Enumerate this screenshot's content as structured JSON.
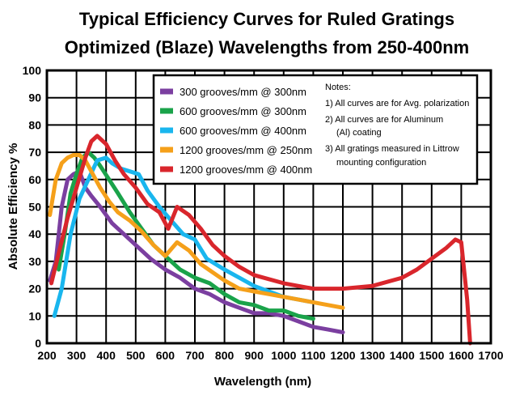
{
  "chart_data": {
    "type": "line",
    "title": "Typical Efficiency Curves  for Ruled Gratings",
    "subtitle": "Optimized (Blaze) Wavelengths from 250-400nm",
    "xlabel": "Wavelength (nm)",
    "ylabel": "Absolute Efficiency %",
    "xlim": [
      200,
      1700
    ],
    "ylim": [
      0,
      100
    ],
    "xticks": [
      200,
      300,
      400,
      500,
      600,
      700,
      800,
      900,
      1000,
      1100,
      1200,
      1300,
      1400,
      1500,
      1600,
      1700
    ],
    "yticks": [
      0,
      10,
      20,
      30,
      40,
      50,
      60,
      70,
      80,
      90,
      100
    ],
    "grid": true,
    "legend_position": "top-right",
    "series": [
      {
        "name": "300 grooves/mm  @ 300nm",
        "color": "#7b3fa0",
        "x": [
          210,
          230,
          250,
          270,
          290,
          310,
          330,
          350,
          380,
          420,
          460,
          500,
          550,
          600,
          650,
          700,
          750,
          800,
          850,
          900,
          950,
          1000,
          1050,
          1100,
          1150,
          1200
        ],
        "y": [
          23,
          30,
          50,
          60,
          62,
          63,
          57,
          54,
          50,
          44,
          40,
          36,
          31,
          27,
          24,
          20,
          18,
          15,
          13,
          11,
          11,
          10,
          8,
          6,
          5,
          4
        ]
      },
      {
        "name": "600 grooves/mm  @ 300nm",
        "color": "#1aa34a",
        "x": [
          240,
          260,
          280,
          300,
          320,
          340,
          360,
          380,
          410,
          440,
          480,
          520,
          560,
          600,
          650,
          700,
          750,
          800,
          850,
          900,
          950,
          1000,
          1050,
          1100
        ],
        "y": [
          27,
          40,
          55,
          62,
          68,
          70,
          68,
          65,
          60,
          55,
          48,
          42,
          36,
          32,
          27,
          24,
          22,
          18,
          15,
          14,
          12,
          12,
          10,
          9
        ]
      },
      {
        "name": "600 grooves/mm  @ 400nm",
        "color": "#19b6ee",
        "x": [
          225,
          250,
          280,
          310,
          340,
          370,
          400,
          420,
          450,
          480,
          510,
          540,
          580,
          620,
          660,
          700,
          740,
          800,
          850,
          900,
          950,
          1000,
          1050,
          1100
        ],
        "y": [
          10,
          20,
          40,
          53,
          60,
          67,
          68,
          66,
          64,
          63,
          62,
          56,
          50,
          45,
          40,
          38,
          31,
          27,
          24,
          21,
          19,
          17,
          16,
          15
        ]
      },
      {
        "name": "1200 grooves/mm  @ 250nm",
        "color": "#f5a01a",
        "x": [
          210,
          230,
          250,
          270,
          290,
          310,
          330,
          350,
          380,
          410,
          440,
          480,
          520,
          560,
          600,
          640,
          680,
          720,
          760,
          800,
          850,
          900,
          950,
          1000,
          1050,
          1100,
          1150,
          1200
        ],
        "y": [
          47,
          60,
          66,
          68,
          69,
          69,
          67,
          63,
          57,
          52,
          48,
          45,
          41,
          36,
          32,
          37,
          34,
          29,
          26,
          23,
          20,
          19,
          18,
          17,
          16,
          15,
          14,
          13
        ]
      },
      {
        "name": "1200 grooves/mm  @ 400nm",
        "color": "#d9262c",
        "x": [
          215,
          240,
          270,
          300,
          330,
          350,
          370,
          400,
          430,
          460,
          500,
          540,
          580,
          610,
          640,
          680,
          720,
          760,
          800,
          850,
          900,
          1000,
          1100,
          1200,
          1300,
          1400,
          1450,
          1500,
          1550,
          1580,
          1600,
          1620,
          1630
        ],
        "y": [
          22,
          33,
          46,
          57,
          68,
          74,
          76,
          73,
          67,
          62,
          57,
          51,
          48,
          42,
          50,
          47,
          42,
          36,
          32,
          28,
          25,
          22,
          20,
          20,
          21,
          24,
          27,
          31,
          35,
          38,
          37,
          16,
          0
        ]
      }
    ],
    "notes": [
      "Notes:",
      "1) All curves are for Avg. polarization",
      "2) All curves are for Aluminum",
      "(Al) coating",
      "3) All gratings measured in Littrow",
      "mounting configuration"
    ]
  }
}
